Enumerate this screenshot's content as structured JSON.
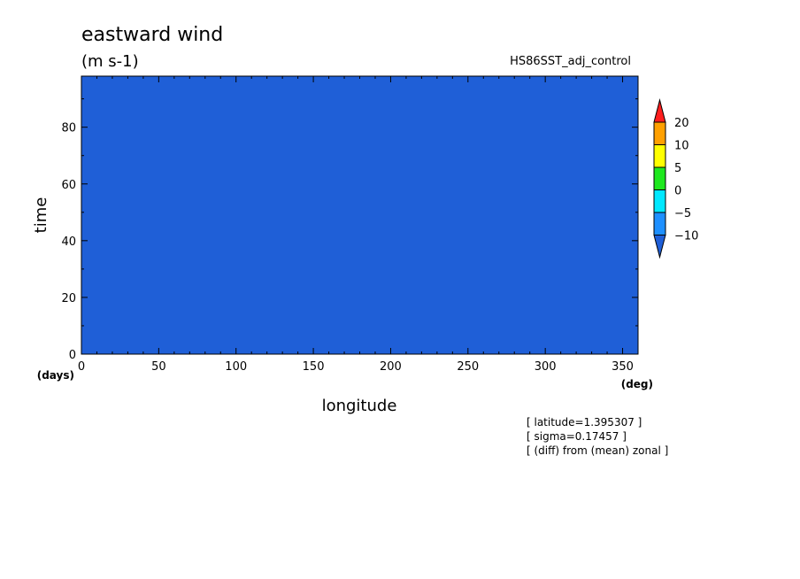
{
  "chart_data": {
    "type": "heatmap",
    "title": "eastward wind",
    "units": "(m s-1)",
    "run_label": "HS86SST_adj_control",
    "xlabel": "longitude",
    "ylabel": "time",
    "x_unit": "(deg)",
    "y_unit": "(days)",
    "xlim": [
      0,
      360
    ],
    "ylim": [
      0,
      98
    ],
    "x_ticks": [
      0,
      50,
      100,
      150,
      200,
      250,
      300,
      350
    ],
    "y_ticks": [
      0,
      20,
      40,
      60,
      80
    ],
    "colorbar": {
      "levels": [
        -10,
        -5,
        0,
        5,
        10,
        20
      ],
      "labels": [
        "20",
        "10",
        "5",
        "0",
        "−5",
        "−10"
      ],
      "colors": {
        "below_-10": "#1f5fd8",
        "-10_to_-5": "#1e90ff",
        "-5_to_0": "#00e8ff",
        "0_to_5": "#1ee81e",
        "5_to_10": "#ffff00",
        "10_to_20": "#ffa000",
        "above_20": "#ff1e1e"
      }
    },
    "annotations": [
      "[ latitude=1.395307 ]",
      "[ sigma=0.17457 ]",
      "[ (diff) from (mean) zonal ]"
    ]
  }
}
